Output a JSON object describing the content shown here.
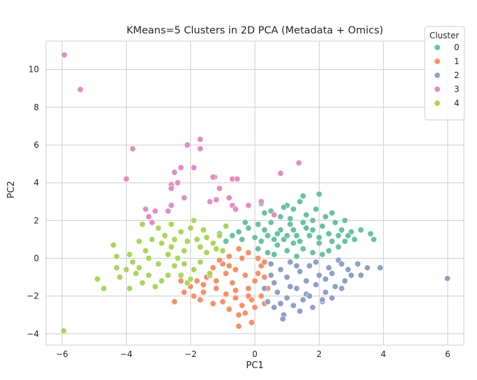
{
  "chart_data": {
    "type": "scatter",
    "title": "KMeans=5 Clusters in 2D PCA (Metadata + Omics)",
    "xlabel": "PC1",
    "ylabel": "PC2",
    "xlim": [
      -6.5,
      6.5
    ],
    "ylim": [
      -4.6,
      11.5
    ],
    "xticks": [
      -6,
      -4,
      -2,
      0,
      2,
      4,
      6
    ],
    "yticks": [
      -4,
      -2,
      0,
      2,
      4,
      6,
      8,
      10
    ],
    "grid": true,
    "legend": {
      "title": "Cluster",
      "placement": "top-right"
    },
    "series": [
      {
        "name": "0",
        "color": "#66c2a5",
        "points": [
          [
            0.2,
            2.9
          ],
          [
            0.5,
            2.5
          ],
          [
            0.8,
            2.2
          ],
          [
            1.0,
            2.8
          ],
          [
            1.2,
            2.6
          ],
          [
            1.5,
            3.3
          ],
          [
            2.0,
            3.4
          ],
          [
            1.4,
            3.0
          ],
          [
            0.9,
            2.7
          ],
          [
            0.3,
            2.4
          ],
          [
            0.1,
            1.8
          ],
          [
            -0.2,
            1.6
          ],
          [
            -0.5,
            1.4
          ],
          [
            -0.7,
            1.2
          ],
          [
            -0.4,
            1.0
          ],
          [
            -0.9,
            0.9
          ],
          [
            -1.1,
            1.3
          ],
          [
            0.5,
            1.9
          ],
          [
            0.8,
            1.5
          ],
          [
            1.1,
            1.8
          ],
          [
            1.3,
            1.2
          ],
          [
            1.6,
            1.6
          ],
          [
            1.8,
            2.0
          ],
          [
            2.1,
            1.7
          ],
          [
            2.3,
            1.3
          ],
          [
            2.5,
            1.9
          ],
          [
            2.7,
            1.5
          ],
          [
            3.0,
            1.4
          ],
          [
            3.1,
            1.0
          ],
          [
            2.8,
            0.9
          ],
          [
            2.6,
            0.6
          ],
          [
            2.3,
            0.4
          ],
          [
            2.0,
            0.8
          ],
          [
            1.8,
            0.3
          ],
          [
            1.5,
            0.5
          ],
          [
            1.2,
            0.8
          ],
          [
            1.0,
            0.4
          ],
          [
            0.7,
            0.7
          ],
          [
            0.4,
            1.2
          ],
          [
            0.2,
            0.9
          ],
          [
            0.1,
            0.5
          ],
          [
            0.6,
            0.2
          ],
          [
            0.9,
            1.0
          ],
          [
            1.4,
            0.9
          ],
          [
            1.7,
            1.2
          ],
          [
            2.0,
            1.1
          ],
          [
            2.2,
            2.2
          ],
          [
            2.4,
            2.4
          ],
          [
            2.8,
            2.0
          ],
          [
            3.3,
            1.5
          ],
          [
            3.6,
            1.3
          ],
          [
            3.7,
            1.0
          ],
          [
            1.1,
            2.1
          ],
          [
            0.7,
            1.3
          ],
          [
            0.3,
            1.5
          ],
          [
            1.9,
            2.6
          ],
          [
            1.6,
            2.3
          ],
          [
            2.9,
            1.2
          ],
          [
            2.1,
            0.2
          ],
          [
            1.3,
            0.1
          ],
          [
            0.4,
            0.3
          ],
          [
            0.0,
            1.1
          ],
          [
            -0.3,
            1.9
          ],
          [
            1.0,
            1.2
          ],
          [
            1.5,
            1.9
          ],
          [
            2.4,
            0.9
          ],
          [
            2.6,
            1.2
          ],
          [
            1.8,
            1.5
          ],
          [
            1.2,
            1.5
          ],
          [
            0.6,
            1.0
          ]
        ]
      },
      {
        "name": "1",
        "color": "#fc8d62",
        "points": [
          [
            -0.5,
            0.5
          ],
          [
            -0.2,
            0.3
          ],
          [
            0.1,
            0.0
          ],
          [
            -0.8,
            0.1
          ],
          [
            -1.0,
            -0.3
          ],
          [
            -1.3,
            -0.5
          ],
          [
            -0.6,
            -0.6
          ],
          [
            -0.3,
            -0.9
          ],
          [
            0.0,
            -1.2
          ],
          [
            0.3,
            -1.0
          ],
          [
            0.2,
            -0.4
          ],
          [
            -1.5,
            -1.0
          ],
          [
            -1.8,
            -1.2
          ],
          [
            -2.0,
            -1.5
          ],
          [
            -1.6,
            -1.8
          ],
          [
            -1.2,
            -1.6
          ],
          [
            -0.9,
            -1.9
          ],
          [
            -0.6,
            -2.1
          ],
          [
            -0.4,
            -2.5
          ],
          [
            -0.1,
            -2.2
          ],
          [
            0.2,
            -2.0
          ],
          [
            0.4,
            -1.6
          ],
          [
            -2.2,
            -1.8
          ],
          [
            -2.5,
            -2.3
          ],
          [
            -1.7,
            -2.2
          ],
          [
            -1.3,
            -2.4
          ],
          [
            -0.8,
            -2.7
          ],
          [
            -0.3,
            -2.9
          ],
          [
            0.0,
            -2.6
          ],
          [
            -0.5,
            -3.6
          ],
          [
            -0.1,
            -3.4
          ],
          [
            -0.5,
            -3.0
          ],
          [
            0.3,
            -2.4
          ],
          [
            -1.0,
            -2.3
          ],
          [
            -1.9,
            -2.0
          ],
          [
            -2.3,
            -1.2
          ],
          [
            -1.4,
            -0.9
          ],
          [
            -0.7,
            -1.3
          ],
          [
            -0.2,
            -1.6
          ],
          [
            0.1,
            -0.8
          ],
          [
            -1.1,
            -0.1
          ],
          [
            -0.4,
            0.0
          ],
          [
            -0.9,
            -0.8
          ],
          [
            -1.6,
            -1.4
          ],
          [
            -0.2,
            -2.0
          ],
          [
            0.3,
            -0.2
          ],
          [
            -0.6,
            -1.7
          ],
          [
            -1.2,
            -1.2
          ],
          [
            -0.8,
            -0.4
          ]
        ]
      },
      {
        "name": "2",
        "color": "#8da0cb",
        "points": [
          [
            0.5,
            -0.3
          ],
          [
            0.8,
            -0.6
          ],
          [
            1.1,
            -0.2
          ],
          [
            1.4,
            -0.7
          ],
          [
            1.7,
            -0.4
          ],
          [
            2.0,
            -0.9
          ],
          [
            2.3,
            -0.5
          ],
          [
            2.6,
            -0.1
          ],
          [
            2.9,
            -0.6
          ],
          [
            3.2,
            -0.3
          ],
          [
            3.5,
            -0.5
          ],
          [
            3.3,
            -0.9
          ],
          [
            2.8,
            -1.2
          ],
          [
            2.5,
            -1.5
          ],
          [
            2.2,
            -1.8
          ],
          [
            1.9,
            -1.4
          ],
          [
            1.6,
            -1.9
          ],
          [
            1.3,
            -1.6
          ],
          [
            1.0,
            -2.1
          ],
          [
            0.7,
            -1.8
          ],
          [
            0.4,
            -2.3
          ],
          [
            0.6,
            -2.6
          ],
          [
            0.9,
            -3.0
          ],
          [
            1.2,
            -2.5
          ],
          [
            1.5,
            -2.2
          ],
          [
            1.8,
            -2.6
          ],
          [
            2.1,
            -2.3
          ],
          [
            2.4,
            -2.1
          ],
          [
            2.7,
            -1.6
          ],
          [
            3.0,
            -0.9
          ],
          [
            3.9,
            -0.5
          ],
          [
            5.99,
            -1.07
          ],
          [
            0.87,
            -3.21
          ],
          [
            2.1,
            -2.2
          ],
          [
            1.0,
            -1.0
          ],
          [
            0.6,
            -1.3
          ],
          [
            1.3,
            -0.4
          ],
          [
            1.9,
            -0.2
          ],
          [
            2.4,
            -0.8
          ],
          [
            0.3,
            -1.6
          ],
          [
            1.6,
            -1.2
          ],
          [
            0.8,
            -2.4
          ],
          [
            1.1,
            -1.5
          ],
          [
            2.7,
            -0.3
          ],
          [
            2.2,
            -1.1
          ],
          [
            1.4,
            -2.8
          ],
          [
            0.5,
            -0.9
          ],
          [
            1.7,
            -2.0
          ]
        ]
      },
      {
        "name": "3",
        "color": "#e78ac3",
        "points": [
          [
            -5.93,
            10.77
          ],
          [
            -5.43,
            8.94
          ],
          [
            -3.8,
            5.8
          ],
          [
            -4.0,
            4.2
          ],
          [
            -2.1,
            6.0
          ],
          [
            -1.7,
            6.3
          ],
          [
            -1.7,
            5.8
          ],
          [
            -1.25,
            4.3
          ],
          [
            -2.3,
            4.8
          ],
          [
            -2.5,
            4.55
          ],
          [
            -2.6,
            3.9
          ],
          [
            -2.6,
            3.7
          ],
          [
            -2.4,
            4.0
          ],
          [
            -2.2,
            3.2
          ],
          [
            -2.6,
            2.8
          ],
          [
            -2.7,
            2.5
          ],
          [
            -3.1,
            2.5
          ],
          [
            -3.3,
            2.2
          ],
          [
            -3.4,
            2.6
          ],
          [
            -3.2,
            1.9
          ],
          [
            -1.1,
            3.7
          ],
          [
            -1.4,
            3.0
          ],
          [
            -0.8,
            3.2
          ],
          [
            -0.7,
            2.8
          ],
          [
            -0.7,
            4.2
          ],
          [
            -1.2,
            3.1
          ],
          [
            -0.6,
            2.6
          ],
          [
            -0.2,
            2.8
          ],
          [
            0.2,
            3.0
          ],
          [
            0.6,
            2.3
          ],
          [
            0.8,
            4.5
          ],
          [
            1.37,
            5.05
          ],
          [
            -1.9,
            4.8
          ],
          [
            -0.55,
            4.2
          ],
          [
            -1.3,
            4.3
          ]
        ]
      },
      {
        "name": "4",
        "color": "#a6d854",
        "points": [
          [
            -5.95,
            -3.85
          ],
          [
            -4.9,
            -1.1
          ],
          [
            -4.7,
            -1.6
          ],
          [
            -4.3,
            -0.5
          ],
          [
            -4.2,
            -1.0
          ],
          [
            -4.4,
            0.7
          ],
          [
            -4.3,
            0.1
          ],
          [
            -4.0,
            -0.6
          ],
          [
            -3.9,
            -1.6
          ],
          [
            -3.7,
            -0.8
          ],
          [
            -3.6,
            -0.5
          ],
          [
            -3.5,
            -1.3
          ],
          [
            -3.3,
            -0.9
          ],
          [
            -3.1,
            -1.5
          ],
          [
            -3.4,
            0.4
          ],
          [
            -3.2,
            1.0
          ],
          [
            -2.9,
            0.8
          ],
          [
            -2.7,
            0.2
          ],
          [
            -2.5,
            -0.4
          ],
          [
            -2.3,
            -0.9
          ],
          [
            -2.1,
            -1.3
          ],
          [
            -1.9,
            -0.6
          ],
          [
            -1.7,
            -0.2
          ],
          [
            -1.5,
            0.3
          ],
          [
            -1.3,
            0.8
          ],
          [
            -1.1,
            1.2
          ],
          [
            -2.0,
            1.6
          ],
          [
            -2.3,
            1.4
          ],
          [
            -2.6,
            1.8
          ],
          [
            -2.8,
            1.2
          ],
          [
            -3.0,
            1.6
          ],
          [
            -3.5,
            1.8
          ],
          [
            -1.8,
            1.0
          ],
          [
            -1.6,
            1.5
          ],
          [
            -1.2,
            0.5
          ],
          [
            -2.2,
            0.4
          ],
          [
            -2.4,
            0.0
          ],
          [
            -2.7,
            -0.9
          ],
          [
            -3.0,
            -0.3
          ],
          [
            -1.9,
            2.0
          ],
          [
            -1.4,
            -0.8
          ],
          [
            -2.0,
            -1.1
          ],
          [
            -2.6,
            0.6
          ],
          [
            -3.3,
            0.0
          ],
          [
            -1.7,
            0.6
          ],
          [
            -2.9,
            -1.2
          ],
          [
            -3.6,
            0.9
          ],
          [
            -2.2,
            -0.3
          ],
          [
            -1.5,
            1.1
          ],
          [
            -2.5,
            1.0
          ],
          [
            -3.8,
            -0.2
          ],
          [
            -0.9,
            1.7
          ],
          [
            -1.0,
            0.4
          ],
          [
            -2.1,
            0.9
          ],
          [
            -3.9,
            0.2
          ]
        ]
      }
    ]
  }
}
